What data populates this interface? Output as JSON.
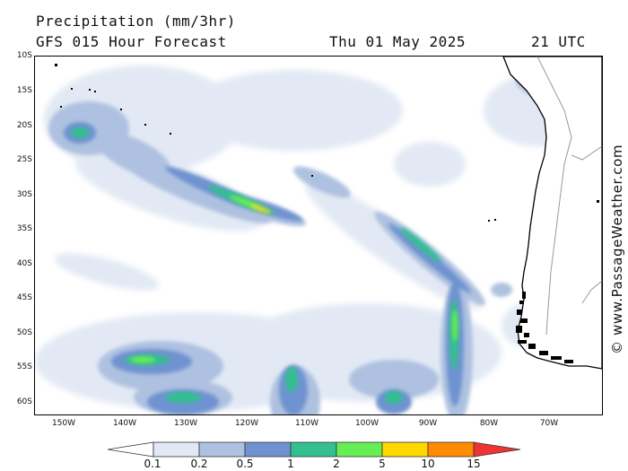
{
  "header": {
    "title": "Precipitation (mm/3hr)",
    "subtitle": "GFS 015 Hour Forecast",
    "date": "Thu 01 May 2025",
    "time": "21 UTC"
  },
  "axes": {
    "lat_labels": [
      "10S",
      "15S",
      "20S",
      "25S",
      "30S",
      "35S",
      "40S",
      "45S",
      "50S",
      "55S",
      "60S"
    ],
    "lon_labels": [
      "150W",
      "140W",
      "130W",
      "120W",
      "110W",
      "100W",
      "90W",
      "80W",
      "70W"
    ]
  },
  "legend": {
    "labels": [
      "0.1",
      "0.2",
      "0.5",
      "1",
      "2",
      "5",
      "10",
      "15"
    ],
    "colors": [
      "#ffffff",
      "#e2e9f4",
      "#aec1e0",
      "#6e93d0",
      "#33bf8f",
      "#66ee55",
      "#ffd800",
      "#ff8c00",
      "#ee3333"
    ]
  },
  "watermark": "© www.PassageWeather.com",
  "colors": {
    "land": "#ffffff",
    "coastline": "#000000",
    "borders": "#999999",
    "ocean": "#ffffff"
  }
}
